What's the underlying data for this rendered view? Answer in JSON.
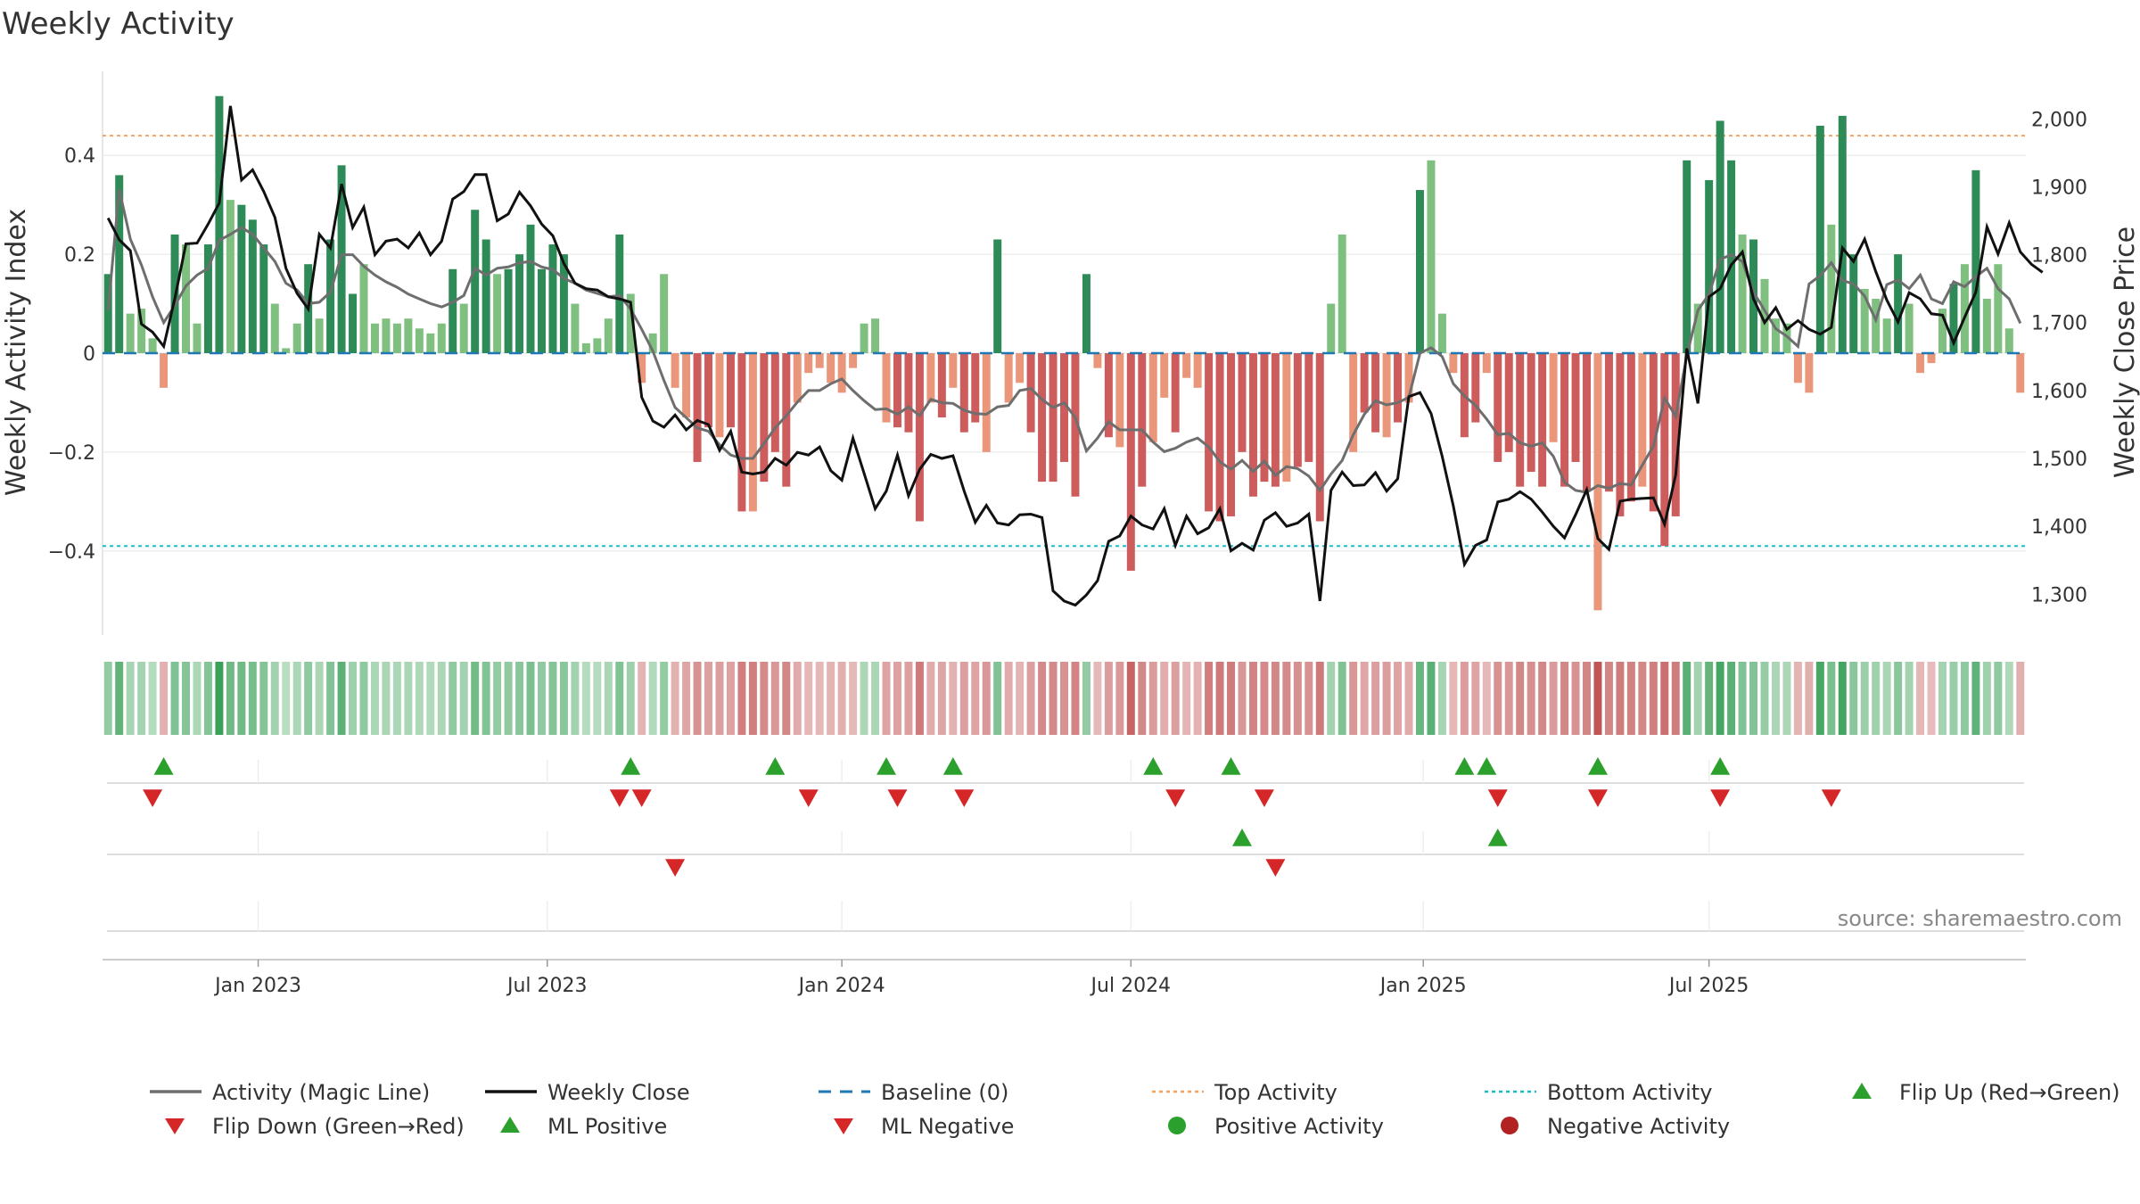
{
  "chart_data": {
    "type": "bar+line",
    "title": "Weekly Activity",
    "ylabel_left": "Weekly Activity Index",
    "ylabel_right": "Weekly Close Price",
    "source": "source: sharemaestro.com",
    "left_axis": {
      "ylim": [
        -0.57,
        0.57
      ],
      "ticks": [
        -0.4,
        -0.2,
        0,
        0.2,
        0.4
      ],
      "tick_labels": [
        "−0.4",
        "−0.2",
        "0",
        "0.2",
        "0.4"
      ]
    },
    "right_axis": {
      "ylim": [
        1240,
        2070
      ],
      "ticks": [
        1300,
        1400,
        1500,
        1600,
        1700,
        1800,
        1900,
        2000
      ],
      "tick_labels": [
        "1,300",
        "1,400",
        "1,500",
        "1,600",
        "1,700",
        "1,800",
        "1,900",
        "2,000"
      ]
    },
    "x_ticks": [
      "Jan 2023",
      "Jul 2023",
      "Jan 2024",
      "Jul 2024",
      "Jan 2025",
      "Jul 2025"
    ],
    "x_tick_week_index": [
      14,
      40,
      66.5,
      92.5,
      118.8,
      144.5
    ],
    "top_activity": 0.44,
    "bottom_activity": -0.39,
    "colors": {
      "pos_strong": "#2e8b57",
      "pos_light": "#7fbf7f",
      "neg_strong": "#cd5c5c",
      "neg_light": "#e9967a",
      "magic_line": "#6e6e6e",
      "close_line": "#111111",
      "baseline": "#1f77b4",
      "top": "#f4a460",
      "bottom": "#17becf",
      "flip_up": "#2ca02c",
      "flip_down": "#d62728"
    },
    "activity": [
      0.16,
      0.36,
      0.08,
      0.09,
      0.03,
      -0.07,
      0.24,
      0.22,
      0.06,
      0.22,
      0.52,
      0.31,
      0.3,
      0.27,
      0.22,
      0.1,
      0.01,
      0.06,
      0.18,
      0.07,
      0.23,
      0.38,
      0.12,
      0.18,
      0.06,
      0.07,
      0.06,
      0.07,
      0.05,
      0.04,
      0.06,
      0.17,
      0.1,
      0.29,
      0.23,
      0.16,
      0.17,
      0.2,
      0.26,
      0.17,
      0.22,
      0.2,
      0.1,
      0.02,
      0.03,
      0.07,
      0.24,
      0.12,
      -0.06,
      0.04,
      0.16,
      -0.07,
      -0.13,
      -0.22,
      -0.15,
      -0.17,
      -0.15,
      -0.32,
      -0.32,
      -0.26,
      -0.2,
      -0.27,
      -0.1,
      -0.04,
      -0.03,
      -0.06,
      -0.08,
      -0.03,
      0.06,
      0.07,
      -0.14,
      -0.15,
      -0.16,
      -0.34,
      -0.1,
      -0.13,
      -0.07,
      -0.16,
      -0.14,
      -0.2,
      0.23,
      -0.1,
      -0.06,
      -0.16,
      -0.26,
      -0.26,
      -0.22,
      -0.29,
      0.16,
      -0.03,
      -0.17,
      -0.19,
      -0.44,
      -0.27,
      -0.18,
      -0.09,
      -0.16,
      -0.05,
      -0.07,
      -0.32,
      -0.34,
      -0.33,
      -0.2,
      -0.29,
      -0.26,
      -0.27,
      -0.26,
      -0.23,
      -0.22,
      -0.34,
      0.1,
      0.24,
      -0.2,
      -0.12,
      -0.16,
      -0.17,
      -0.14,
      -0.1,
      0.33,
      0.39,
      0.08,
      -0.04,
      -0.17,
      -0.14,
      -0.04,
      -0.22,
      -0.2,
      -0.27,
      -0.24,
      -0.27,
      -0.18,
      -0.27,
      -0.22,
      -0.28,
      -0.52,
      -0.28,
      -0.33,
      -0.3,
      -0.27,
      -0.32,
      -0.39,
      -0.33,
      0.39,
      0.1,
      0.35,
      0.47,
      0.39,
      0.24,
      0.23,
      0.15,
      0.07,
      0.06,
      -0.06,
      -0.08,
      0.46,
      0.26,
      0.48,
      0.2,
      0.13,
      0.11,
      0.07,
      0.2,
      0.1,
      -0.04,
      -0.02,
      0.09,
      0.14,
      0.18,
      0.37,
      0.11,
      0.18,
      0.05,
      -0.08
    ],
    "weekly_close": [
      1854,
      1822,
      1806,
      1698,
      1686,
      1665,
      1735,
      1816,
      1817,
      1845,
      1876,
      2019,
      1910,
      1925,
      1893,
      1855,
      1780,
      1743,
      1720,
      1830,
      1810,
      1904,
      1840,
      1870,
      1800,
      1820,
      1823,
      1810,
      1832,
      1800,
      1820,
      1882,
      1893,
      1918,
      1918,
      1850,
      1860,
      1892,
      1872,
      1845,
      1828,
      1787,
      1758,
      1750,
      1748,
      1738,
      1735,
      1730,
      1590,
      1555,
      1546,
      1564,
      1542,
      1556,
      1550,
      1512,
      1540,
      1480,
      1477,
      1480,
      1500,
      1490,
      1509,
      1505,
      1517,
      1482,
      1468,
      1530,
      1478,
      1426,
      1452,
      1505,
      1445,
      1484,
      1506,
      1500,
      1504,
      1452,
      1406,
      1431,
      1405,
      1402,
      1417,
      1418,
      1413,
      1305,
      1290,
      1284,
      1299,
      1320,
      1378,
      1386,
      1415,
      1402,
      1396,
      1426,
      1372,
      1415,
      1389,
      1398,
      1426,
      1364,
      1375,
      1365,
      1409,
      1420,
      1400,
      1405,
      1418,
      1290,
      1453,
      1480,
      1460,
      1461,
      1479,
      1452,
      1470,
      1591,
      1597,
      1566,
      1503,
      1430,
      1344,
      1372,
      1380,
      1436,
      1440,
      1451,
      1440,
      1421,
      1400,
      1383,
      1417,
      1454,
      1382,
      1366,
      1437,
      1440,
      1441,
      1442,
      1403,
      1476,
      1662,
      1581,
      1738,
      1750,
      1785,
      1804,
      1735,
      1700,
      1722,
      1690,
      1703,
      1690,
      1683,
      1693,
      1810,
      1790,
      1823,
      1775,
      1733,
      1701,
      1744,
      1735,
      1713,
      1711,
      1670,
      1708,
      1745,
      1841,
      1801,
      1847,
      1804,
      1786,
      1774
    ],
    "magic_line": [
      1718,
      1896,
      1823,
      1785,
      1738,
      1700,
      1725,
      1754,
      1770,
      1780,
      1821,
      1830,
      1840,
      1830,
      1810,
      1790,
      1758,
      1748,
      1728,
      1730,
      1745,
      1800,
      1800,
      1783,
      1770,
      1760,
      1752,
      1742,
      1735,
      1728,
      1723,
      1730,
      1740,
      1780,
      1770,
      1780,
      1782,
      1788,
      1790,
      1782,
      1778,
      1765,
      1758,
      1748,
      1743,
      1738,
      1740,
      1720,
      1690,
      1658,
      1615,
      1575,
      1560,
      1545,
      1540,
      1520,
      1505,
      1500,
      1500,
      1522,
      1545,
      1563,
      1583,
      1600,
      1600,
      1610,
      1617,
      1600,
      1585,
      1572,
      1573,
      1565,
      1576,
      1563,
      1587,
      1582,
      1581,
      1571,
      1566,
      1565,
      1576,
      1578,
      1600,
      1603,
      1587,
      1575,
      1582,
      1560,
      1511,
      1530,
      1554,
      1542,
      1542,
      1542,
      1524,
      1510,
      1515,
      1524,
      1530,
      1517,
      1495,
      1484,
      1497,
      1481,
      1496,
      1475,
      1488,
      1485,
      1474,
      1453,
      1477,
      1497,
      1535,
      1565,
      1585,
      1579,
      1582,
      1590,
      1655,
      1663,
      1650,
      1610,
      1592,
      1578,
      1558,
      1535,
      1537,
      1523,
      1518,
      1523,
      1503,
      1465,
      1453,
      1450,
      1460,
      1456,
      1463,
      1461,
      1490,
      1518,
      1589,
      1562,
      1651,
      1718,
      1742,
      1793,
      1800,
      1790,
      1745,
      1718,
      1691,
      1680,
      1665,
      1757,
      1769,
      1788,
      1762,
      1757,
      1739,
      1704,
      1756,
      1763,
      1750,
      1770,
      1735,
      1728,
      1760,
      1753,
      1768,
      1780,
      1750,
      1735,
      1699
    ],
    "flip_up_weeks": [
      5,
      47,
      60,
      70,
      76,
      94,
      101,
      122,
      124,
      134,
      145
    ],
    "flip_down_weeks": [
      4,
      46,
      48,
      63,
      71,
      77,
      96,
      104,
      125,
      134,
      145,
      155
    ],
    "ml_positive_weeks": [
      102,
      125
    ],
    "ml_negative_weeks": [
      51,
      105
    ],
    "positive_activity_weeks": [],
    "negative_activity_weeks": [],
    "legend": [
      {
        "label": "Activity (Magic Line)",
        "kind": "line",
        "color": "#6e6e6e"
      },
      {
        "label": "Weekly Close",
        "kind": "line",
        "color": "#111111"
      },
      {
        "label": "Baseline (0)",
        "kind": "dash",
        "color": "#1f77b4"
      },
      {
        "label": "Top Activity",
        "kind": "dot",
        "color": "#f4a460"
      },
      {
        "label": "Bottom Activity",
        "kind": "dot",
        "color": "#17becf"
      },
      {
        "label": "Flip Up (Red→Green)",
        "kind": "tri-up",
        "color": "#2ca02c"
      },
      {
        "label": "Flip Down (Green→Red)",
        "kind": "tri-down",
        "color": "#d62728"
      },
      {
        "label": "ML Positive",
        "kind": "tri-up",
        "color": "#2ca02c"
      },
      {
        "label": "ML Negative",
        "kind": "tri-down",
        "color": "#d62728"
      },
      {
        "label": "Positive Activity",
        "kind": "circle",
        "color": "#2ca02c"
      },
      {
        "label": "Negative Activity",
        "kind": "circle",
        "color": "#b22222"
      }
    ]
  }
}
